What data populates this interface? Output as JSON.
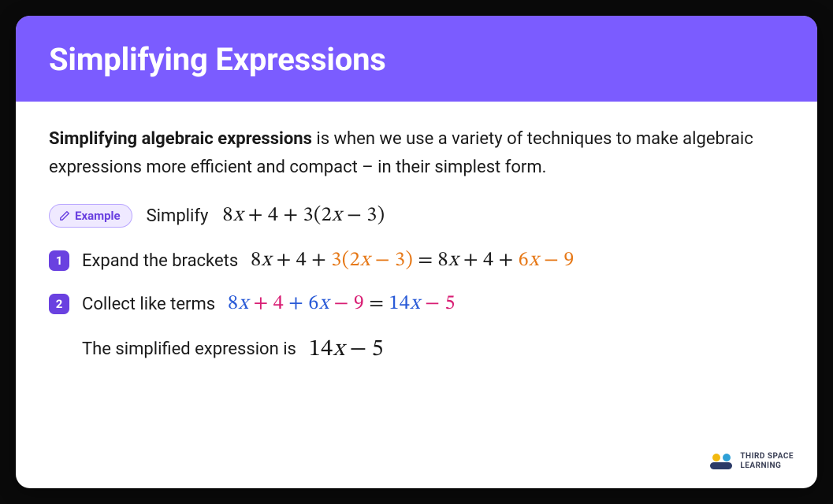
{
  "colors": {
    "header_bg": "#7b5cff",
    "text": "#1a1a1a",
    "pill_bg": "#efe9ff",
    "pill_border": "#b9a6ff",
    "pill_text": "#6a41e0",
    "badge_bg": "#6a41e0",
    "orange": "#e67817",
    "blue": "#2a5bd7",
    "magenta": "#d81e74",
    "logo_yellow": "#f2b90f",
    "logo_blue": "#2ea0d6",
    "logo_navy": "#2b3a67"
  },
  "header": {
    "title": "Simplifying Expressions"
  },
  "intro": {
    "bold": "Simplifying algebraic expressions",
    "rest": " is when we use a variety of techniques to make algebraic expressions more efficient and compact – in their simplest form."
  },
  "example": {
    "pill_label": "Example",
    "prompt": "Simplify",
    "expression_tokens": [
      {
        "t": "8",
        "c": null
      },
      {
        "t": "x",
        "c": null,
        "it": 1
      },
      {
        "t": "+",
        "c": null,
        "op": 1
      },
      {
        "t": "4",
        "c": null
      },
      {
        "t": "+",
        "c": null,
        "op": 1
      },
      {
        "t": "3",
        "c": null
      },
      {
        "t": "(",
        "c": null
      },
      {
        "t": "2",
        "c": null
      },
      {
        "t": "x",
        "c": null,
        "it": 1
      },
      {
        "t": "−",
        "c": null,
        "op": 1
      },
      {
        "t": "3",
        "c": null
      },
      {
        "t": ")",
        "c": null
      }
    ]
  },
  "steps": [
    {
      "num": "1",
      "label": "Expand the brackets",
      "expr": [
        {
          "t": "8",
          "c": null
        },
        {
          "t": "x",
          "c": null,
          "it": 1
        },
        {
          "t": "+",
          "c": null,
          "op": 1
        },
        {
          "t": "4",
          "c": null
        },
        {
          "t": "+",
          "c": null,
          "op": 1
        },
        {
          "t": "3",
          "c": "orange"
        },
        {
          "t": "(",
          "c": "orange"
        },
        {
          "t": "2",
          "c": "orange"
        },
        {
          "t": "x",
          "c": "orange",
          "it": 1
        },
        {
          "t": "−",
          "c": "orange",
          "op": 1
        },
        {
          "t": "3",
          "c": "orange"
        },
        {
          "t": ")",
          "c": "orange"
        },
        {
          "t": "=",
          "c": null,
          "op": 1
        },
        {
          "t": "8",
          "c": null
        },
        {
          "t": "x",
          "c": null,
          "it": 1
        },
        {
          "t": "+",
          "c": null,
          "op": 1
        },
        {
          "t": "4",
          "c": null
        },
        {
          "t": "+",
          "c": null,
          "op": 1
        },
        {
          "t": "6",
          "c": "orange"
        },
        {
          "t": "x",
          "c": "orange",
          "it": 1
        },
        {
          "t": "−",
          "c": "orange",
          "op": 1
        },
        {
          "t": "9",
          "c": "orange"
        }
      ]
    },
    {
      "num": "2",
      "label": "Collect like terms",
      "expr": [
        {
          "t": "8",
          "c": "blue"
        },
        {
          "t": "x",
          "c": "blue",
          "it": 1
        },
        {
          "t": "+",
          "c": "magenta",
          "op": 1
        },
        {
          "t": "4",
          "c": "magenta"
        },
        {
          "t": "+",
          "c": "blue",
          "op": 1
        },
        {
          "t": "6",
          "c": "blue"
        },
        {
          "t": "x",
          "c": "blue",
          "it": 1
        },
        {
          "t": "−",
          "c": "magenta",
          "op": 1
        },
        {
          "t": "9",
          "c": "magenta"
        },
        {
          "t": "=",
          "c": null,
          "op": 1
        },
        {
          "t": "14",
          "c": "blue"
        },
        {
          "t": "x",
          "c": "blue",
          "it": 1
        },
        {
          "t": "−",
          "c": "magenta",
          "op": 1
        },
        {
          "t": "5",
          "c": "magenta"
        }
      ]
    }
  ],
  "result": {
    "label": "The simplified expression is",
    "expr": [
      {
        "t": "14",
        "c": null
      },
      {
        "t": "x",
        "c": null,
        "it": 1
      },
      {
        "t": "−",
        "c": null,
        "op": 1
      },
      {
        "t": "5",
        "c": null
      }
    ]
  },
  "logo": {
    "line1": "THIRD SPACE",
    "line2": "LEARNING"
  }
}
